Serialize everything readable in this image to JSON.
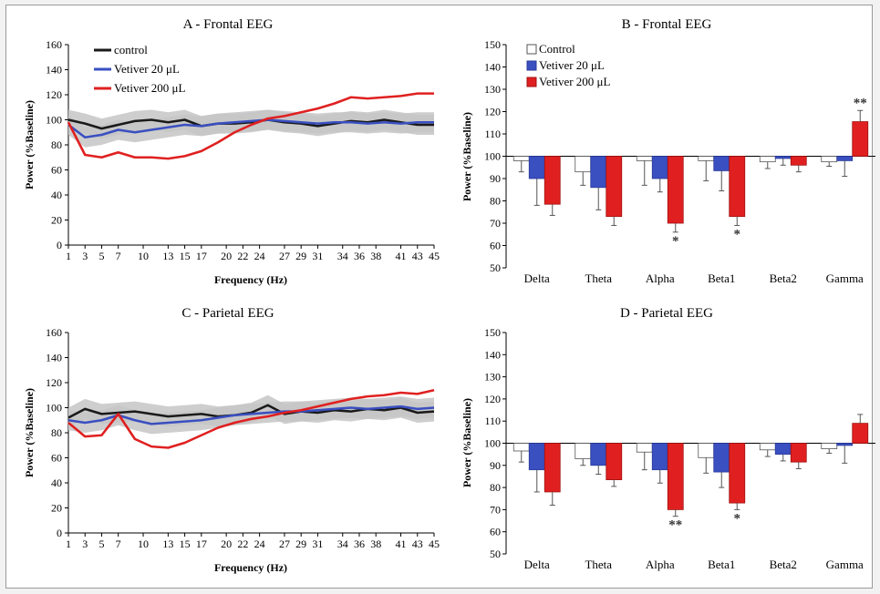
{
  "figure": {
    "panel_a_title": "A - Frontal EEG",
    "panel_b_title": "B - Frontal EEG",
    "panel_c_title": "C - Parietal EEG",
    "panel_d_title": "D - Parietal EEG",
    "line_xlabel": "Frequency (Hz)",
    "ylabel": "Power (%Baseline)"
  },
  "colors": {
    "control": "#1a1a1a",
    "v20": "#3a4fc0",
    "v200": "#e02020",
    "band": "#c6c6c6"
  },
  "chart_data": [
    {
      "id": "A",
      "type": "line",
      "title": "A - Frontal EEG",
      "xlabel": "Frequency (Hz)",
      "ylabel": "Power (%Baseline)",
      "ylim": [
        0,
        160
      ],
      "yticks": [
        0,
        20,
        40,
        60,
        80,
        100,
        120,
        140,
        160
      ],
      "xlim": [
        1,
        45
      ],
      "xticks": [
        1,
        3,
        5,
        7,
        10,
        13,
        15,
        17,
        20,
        22,
        24,
        27,
        29,
        31,
        34,
        36,
        38,
        41,
        43,
        45
      ],
      "legend": [
        "control",
        "Vetiver 20 μL",
        "Vetiver 200 μL"
      ],
      "legend_position": "top-left",
      "x": [
        1,
        3,
        5,
        7,
        9,
        11,
        13,
        15,
        17,
        19,
        21,
        23,
        25,
        27,
        29,
        31,
        33,
        35,
        37,
        39,
        41,
        43,
        45
      ],
      "series": [
        {
          "name": "control",
          "values": [
            100,
            97,
            93,
            96,
            99,
            100,
            98,
            100,
            95,
            97,
            97,
            98,
            100,
            98,
            97,
            95,
            97,
            99,
            98,
            100,
            98,
            96,
            96
          ]
        },
        {
          "name": "Vetiver 20 μL",
          "values": [
            96,
            86,
            88,
            92,
            90,
            92,
            94,
            96,
            95,
            97,
            98,
            99,
            100,
            99,
            98,
            97,
            98,
            98,
            97,
            98,
            97,
            98,
            98
          ]
        },
        {
          "name": "Vetiver 200 μL",
          "values": [
            98,
            72,
            70,
            74,
            70,
            70,
            69,
            71,
            75,
            82,
            90,
            96,
            101,
            103,
            106,
            109,
            113,
            118,
            117,
            118,
            119,
            121,
            121
          ]
        }
      ]
    },
    {
      "id": "C",
      "type": "line",
      "title": "C - Parietal EEG",
      "xlabel": "Frequency (Hz)",
      "ylabel": "Power (%Baseline)",
      "ylim": [
        0,
        160
      ],
      "yticks": [
        0,
        20,
        40,
        60,
        80,
        100,
        120,
        140,
        160
      ],
      "xlim": [
        1,
        45
      ],
      "xticks": [
        1,
        3,
        5,
        7,
        10,
        13,
        15,
        17,
        20,
        22,
        24,
        27,
        29,
        31,
        34,
        36,
        38,
        41,
        43,
        45
      ],
      "x": [
        1,
        3,
        5,
        7,
        9,
        11,
        13,
        15,
        17,
        19,
        21,
        23,
        25,
        27,
        29,
        31,
        33,
        35,
        37,
        39,
        41,
        43,
        45
      ],
      "series": [
        {
          "name": "control",
          "values": [
            92,
            99,
            95,
            96,
            97,
            95,
            93,
            94,
            95,
            93,
            94,
            96,
            102,
            95,
            97,
            96,
            98,
            97,
            99,
            98,
            100,
            96,
            97
          ]
        },
        {
          "name": "Vetiver 20 μL",
          "values": [
            90,
            88,
            90,
            94,
            90,
            87,
            88,
            89,
            90,
            92,
            94,
            95,
            96,
            97,
            97,
            98,
            99,
            100,
            99,
            100,
            101,
            99,
            100
          ]
        },
        {
          "name": "Vetiver 200 μL",
          "values": [
            88,
            77,
            78,
            95,
            75,
            69,
            68,
            72,
            78,
            84,
            88,
            91,
            93,
            96,
            98,
            101,
            104,
            107,
            109,
            110,
            112,
            111,
            114
          ]
        }
      ]
    },
    {
      "id": "B",
      "type": "bar",
      "title": "B - Frontal EEG",
      "ylabel": "Power (%Baseline)",
      "ylim": [
        50,
        150
      ],
      "yticks": [
        50,
        60,
        70,
        80,
        90,
        100,
        110,
        120,
        130,
        140,
        150
      ],
      "baseline": 100,
      "categories": [
        "Delta",
        "Theta",
        "Alpha",
        "Beta1",
        "Beta2",
        "Gamma"
      ],
      "legend": [
        "Control",
        "Vetiver 20 μL",
        "Vetiver 200 μL"
      ],
      "legend_position": "top-left",
      "series": [
        {
          "name": "Control",
          "values": [
            98,
            93,
            98,
            98,
            97.5,
            97.5
          ],
          "errors": [
            5,
            6,
            11,
            9,
            3,
            2
          ]
        },
        {
          "name": "Vetiver 20 μL",
          "values": [
            90,
            86,
            90,
            93.5,
            99,
            98
          ],
          "errors": [
            12,
            10,
            6,
            9,
            3,
            7
          ]
        },
        {
          "name": "Vetiver 200 μL",
          "values": [
            78.5,
            73,
            70,
            73,
            96,
            115.5
          ],
          "errors": [
            5,
            4,
            4,
            4,
            3,
            5
          ]
        }
      ],
      "annotations": [
        {
          "category": "Alpha",
          "series": "Vetiver 200 μL",
          "text": "*"
        },
        {
          "category": "Beta1",
          "series": "Vetiver 200 μL",
          "text": "*"
        },
        {
          "category": "Gamma",
          "series": "Vetiver 200 μL",
          "text": "**"
        }
      ]
    },
    {
      "id": "D",
      "type": "bar",
      "title": "D - Parietal EEG",
      "ylabel": "Power (%Baseline)",
      "ylim": [
        50,
        150
      ],
      "yticks": [
        50,
        60,
        70,
        80,
        90,
        100,
        110,
        120,
        130,
        140,
        150
      ],
      "baseline": 100,
      "categories": [
        "Delta",
        "Theta",
        "Alpha",
        "Beta1",
        "Beta2",
        "Gamma"
      ],
      "series": [
        {
          "name": "Control",
          "values": [
            96.5,
            93,
            96,
            93.5,
            97,
            97.5
          ],
          "errors": [
            5,
            3,
            8,
            7,
            3,
            2
          ]
        },
        {
          "name": "Vetiver 20 μL",
          "values": [
            88,
            90,
            88,
            87,
            95,
            99
          ],
          "errors": [
            10,
            4,
            6,
            7,
            3,
            8
          ]
        },
        {
          "name": "Vetiver 200 μL",
          "values": [
            78,
            83.5,
            70,
            73,
            91.5,
            109
          ],
          "errors": [
            6,
            3,
            3,
            3,
            3,
            4
          ]
        }
      ],
      "annotations": [
        {
          "category": "Alpha",
          "series": "Vetiver 200 μL",
          "text": "**"
        },
        {
          "category": "Beta1",
          "series": "Vetiver 200 μL",
          "text": "*"
        }
      ]
    }
  ]
}
